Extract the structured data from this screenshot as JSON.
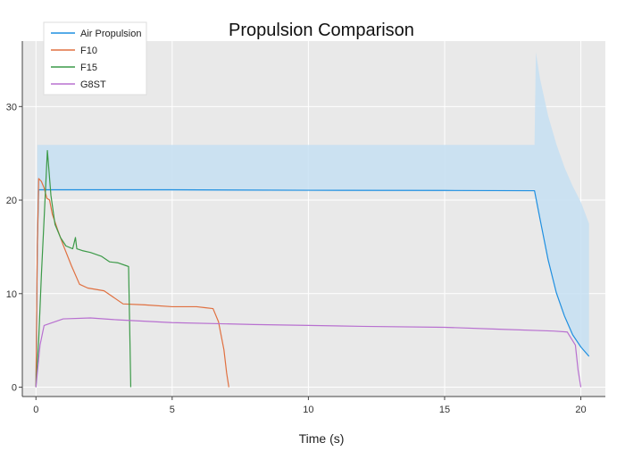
{
  "chart_data": {
    "type": "line",
    "title": "Propulsion Comparison",
    "xlabel": "Time (s)",
    "ylabel": "",
    "xlim": [
      -0.5,
      20.9
    ],
    "ylim": [
      -1,
      37
    ],
    "x_ticks": [
      0,
      5,
      10,
      15,
      20
    ],
    "y_ticks": [
      0,
      10,
      20,
      30
    ],
    "grid": true,
    "legend_position": "top-left",
    "background": "#e9e9e9",
    "series": [
      {
        "name": "Air Propulsion",
        "color": "#1f8fe0",
        "x": [
          0,
          0.05,
          0.1,
          5,
          10,
          15,
          18.3,
          18.5,
          18.8,
          19.1,
          19.4,
          19.7,
          20.0,
          20.3
        ],
        "y": [
          0,
          15,
          21.1,
          21.1,
          21.05,
          21.03,
          21.0,
          18.0,
          13.6,
          10.1,
          7.6,
          5.6,
          4.3,
          3.3
        ]
      },
      {
        "name": "F10",
        "color": "#e07040",
        "x": [
          0,
          0.05,
          0.1,
          0.2,
          0.3,
          0.4,
          0.5,
          0.6,
          0.8,
          1.0,
          1.3,
          1.6,
          1.9,
          2.5,
          3.2,
          4.0,
          5.0,
          5.6,
          5.9,
          6.2,
          6.5,
          6.7,
          6.9,
          7.0,
          7.08
        ],
        "y": [
          0,
          15,
          22.3,
          22.0,
          21.3,
          20.2,
          20.0,
          18.5,
          16.8,
          15.2,
          13.0,
          11.0,
          10.6,
          10.3,
          8.9,
          8.8,
          8.6,
          8.6,
          8.6,
          8.5,
          8.4,
          7.0,
          4.0,
          1.5,
          0
        ]
      },
      {
        "name": "F15",
        "color": "#3c9a48",
        "x": [
          0,
          0.1,
          0.2,
          0.3,
          0.42,
          0.55,
          0.7,
          0.9,
          1.1,
          1.35,
          1.45,
          1.5,
          1.7,
          2.0,
          2.4,
          2.7,
          3.0,
          3.3,
          3.4,
          3.45,
          3.48
        ],
        "y": [
          0,
          5,
          12,
          18,
          25.3,
          20.5,
          17.4,
          16.0,
          15.1,
          14.8,
          16.0,
          14.8,
          14.6,
          14.4,
          14.0,
          13.4,
          13.3,
          13.0,
          12.9,
          5,
          0
        ]
      },
      {
        "name": "G8ST",
        "color": "#b870d0",
        "x": [
          0,
          0.05,
          0.15,
          0.3,
          1.0,
          2.0,
          3.0,
          5.0,
          8.0,
          10.0,
          12.0,
          15.0,
          17.0,
          19.0,
          19.5,
          19.8,
          19.9,
          20.0
        ],
        "y": [
          0,
          1.5,
          4.5,
          6.6,
          7.3,
          7.4,
          7.2,
          6.9,
          6.7,
          6.6,
          6.5,
          6.4,
          6.2,
          6.0,
          5.9,
          4.5,
          1.8,
          0
        ]
      }
    ],
    "band": {
      "series": "Air Propulsion",
      "color": "#c5dff2",
      "x": [
        0,
        0.05,
        0.1,
        5,
        10,
        15,
        18.3,
        18.35,
        18.5,
        18.8,
        19.1,
        19.4,
        19.7,
        20.0,
        20.3
      ],
      "upper": [
        0.5,
        25.9,
        25.9,
        25.9,
        25.9,
        25.9,
        25.9,
        35.8,
        33.0,
        29.0,
        26.0,
        23.5,
        21.5,
        19.8,
        17.5
      ],
      "lower": [
        0,
        5,
        21.0,
        21.0,
        21.0,
        21.0,
        21.0,
        20.2,
        18.0,
        13.6,
        10.1,
        7.6,
        5.6,
        4.3,
        3.3
      ]
    }
  }
}
